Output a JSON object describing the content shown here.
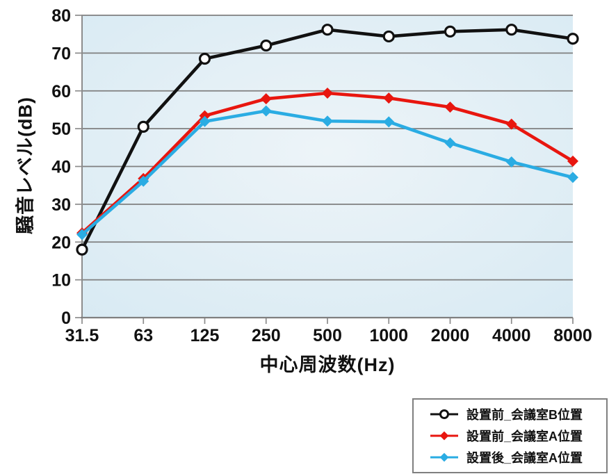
{
  "chart_data": {
    "type": "line",
    "title": "",
    "grid": true,
    "legend_position": "bottom-right",
    "plot_bg": {
      "center": "#edf4f8",
      "edge": "#d8eaf3"
    },
    "gridline_color": "#7f7f7f",
    "axis_color": "#8c8c8c",
    "x_axis": {
      "label": "中心周波数(Hz)",
      "categories": [
        "31.5",
        "63",
        "125",
        "250",
        "500",
        "1000",
        "2000",
        "4000",
        "8000"
      ]
    },
    "y_axis": {
      "label": "騒音レベル(dB)",
      "min": 0,
      "max": 80,
      "tick_step": 10,
      "ticks": [
        0,
        10,
        20,
        30,
        40,
        50,
        60,
        70,
        80
      ]
    },
    "series": [
      {
        "name": "設置前_会議室B位置",
        "color": "#111111",
        "marker": "circle-open",
        "values": [
          18,
          50.5,
          68.5,
          72,
          76.2,
          74.4,
          75.7,
          76.2,
          73.8
        ]
      },
      {
        "name": "設置前_会議室A位置",
        "color": "#e8160f",
        "marker": "diamond",
        "values": [
          22.4,
          36.8,
          53.4,
          57.9,
          59.4,
          58.1,
          55.7,
          51.2,
          41.4
        ]
      },
      {
        "name": "設置後_会議室A位置",
        "color": "#2aace3",
        "marker": "diamond",
        "values": [
          22,
          36.1,
          51.9,
          54.7,
          52,
          51.8,
          46.2,
          41.2,
          37.1
        ]
      }
    ]
  }
}
